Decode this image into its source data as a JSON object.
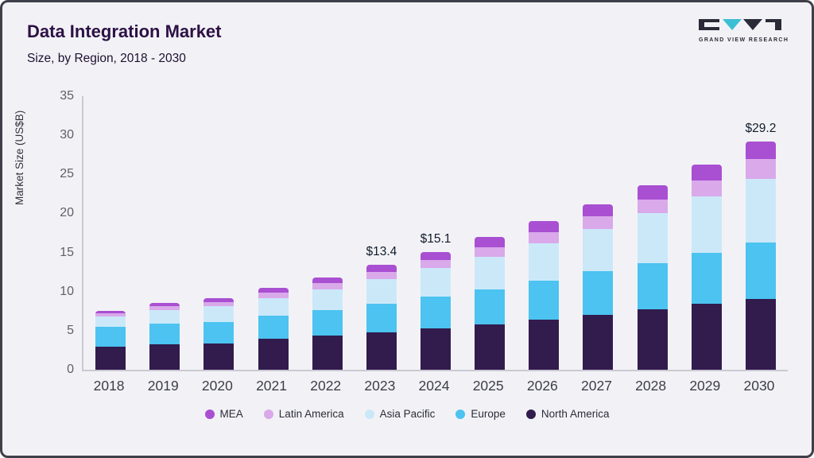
{
  "header": {
    "title": "Data Integration Market",
    "subtitle": "Size, by Region, 2018 - 2030",
    "logo_text": "GRAND VIEW RESEARCH"
  },
  "chart_data": {
    "type": "bar",
    "stacked": true,
    "title": "Data Integration Market",
    "subtitle": "Size, by Region, 2018 - 2030",
    "xlabel": "",
    "ylabel": "Market Size (US$B)",
    "ylim": [
      0,
      35
    ],
    "yticks": [
      0,
      5,
      10,
      15,
      20,
      25,
      30,
      35
    ],
    "grid": false,
    "legend_position": "bottom",
    "categories": [
      "2018",
      "2019",
      "2020",
      "2021",
      "2022",
      "2023",
      "2024",
      "2025",
      "2026",
      "2027",
      "2028",
      "2029",
      "2030"
    ],
    "series": [
      {
        "name": "North America",
        "color": "#321b4d",
        "values": [
          3.0,
          3.3,
          3.4,
          4.0,
          4.4,
          4.8,
          5.3,
          5.8,
          6.4,
          7.0,
          7.7,
          8.4,
          9.1
        ]
      },
      {
        "name": "Europe",
        "color": "#4cc3f0",
        "values": [
          2.5,
          2.6,
          2.7,
          2.9,
          3.2,
          3.6,
          4.1,
          4.5,
          5.0,
          5.6,
          5.9,
          6.6,
          7.2
        ]
      },
      {
        "name": "Asia Pacific",
        "color": "#cbe8f9",
        "values": [
          1.3,
          1.7,
          2.0,
          2.3,
          2.7,
          3.2,
          3.6,
          4.2,
          4.8,
          5.4,
          6.4,
          7.2,
          8.1
        ]
      },
      {
        "name": "Latin America",
        "color": "#d9a9ea",
        "values": [
          0.4,
          0.5,
          0.6,
          0.7,
          0.8,
          0.9,
          1.0,
          1.2,
          1.4,
          1.6,
          1.8,
          2.0,
          2.6
        ]
      },
      {
        "name": "MEA",
        "color": "#a94fd2",
        "values": [
          0.3,
          0.5,
          0.5,
          0.6,
          0.7,
          0.9,
          1.1,
          1.3,
          1.4,
          1.6,
          1.8,
          2.1,
          2.2
        ]
      }
    ],
    "annotations": {
      "2023": "$13.4",
      "2024": "$15.1",
      "2030": "$29.2"
    },
    "legend": [
      "MEA",
      "Latin America",
      "Asia Pacific",
      "Europe",
      "North America"
    ],
    "totals": [
      7.5,
      8.6,
      9.2,
      10.5,
      11.8,
      13.4,
      15.1,
      17.0,
      19.0,
      21.2,
      23.6,
      26.3,
      29.2
    ]
  }
}
